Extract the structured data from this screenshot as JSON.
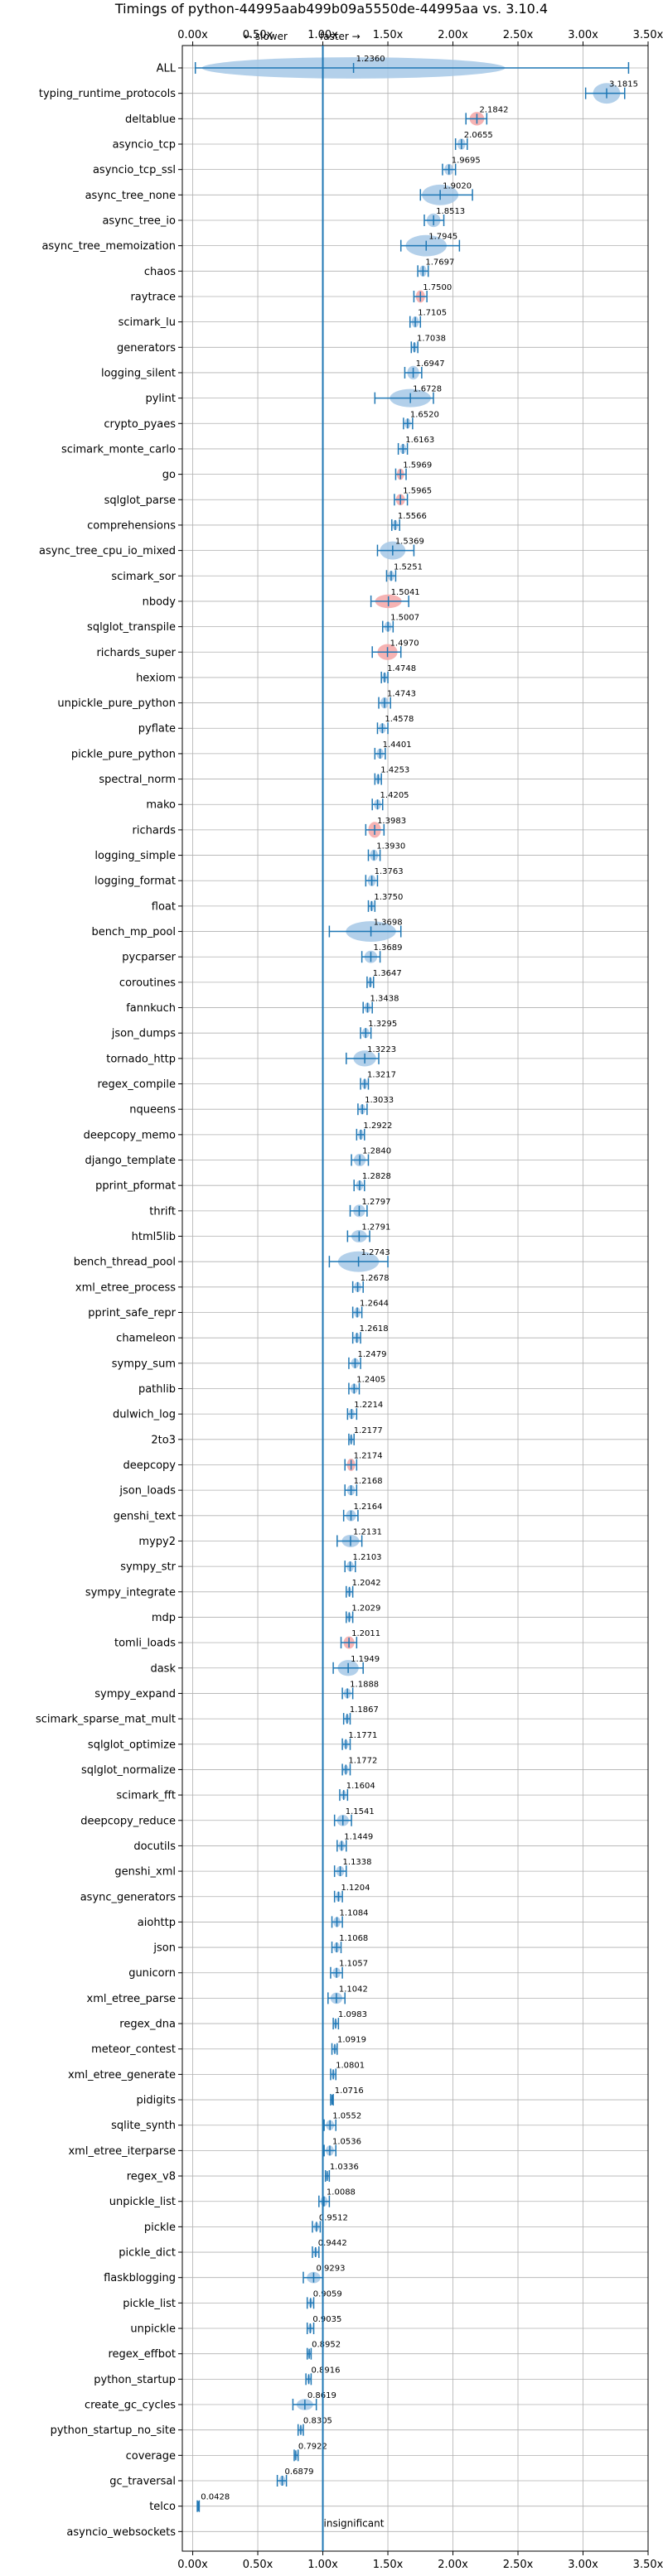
{
  "chart_data": {
    "type": "violin",
    "title": "Timings of python-44995aab499b09a5550de-44995aa vs. 3.10.4",
    "x_tick_labels": [
      "0.00x",
      "0.50x",
      "1.00x",
      "1.50x",
      "2.00x",
      "2.50x",
      "3.00x",
      "3.50x"
    ],
    "x_ticks": [
      0,
      0.5,
      1.0,
      1.5,
      2.0,
      2.5,
      3.0,
      3.5
    ],
    "xlim": [
      -0.08,
      3.5
    ],
    "reference_line": 1.0,
    "slower_label": "← slower",
    "faster_label": "faster →",
    "insignificant_label": "insignificant",
    "insignificant_category": "asyncio_websockets",
    "grid": true,
    "colors": {
      "blue": "#1f77b4",
      "violin": "#a6c8e6",
      "red": "#f4a6a6",
      "grid": "#b0b0b0"
    },
    "benchmarks": [
      {
        "name": "ALL",
        "value": 1.236,
        "lo": 0.02,
        "hi": 3.35,
        "spread": 0.45,
        "color": "blue"
      },
      {
        "name": "typing_runtime_protocols",
        "value": 3.1815,
        "lo": 3.02,
        "hi": 3.32,
        "spread": 0.12,
        "color": "blue"
      },
      {
        "name": "deltablue",
        "value": 2.1842,
        "lo": 2.1,
        "hi": 2.26,
        "spread": 0.06,
        "color": "red"
      },
      {
        "name": "asyncio_tcp",
        "value": 2.0655,
        "lo": 2.02,
        "hi": 2.11,
        "spread": 0.04,
        "color": "blue"
      },
      {
        "name": "asyncio_tcp_ssl",
        "value": 1.9695,
        "lo": 1.92,
        "hi": 2.02,
        "spread": 0.04,
        "color": "blue"
      },
      {
        "name": "async_tree_none",
        "value": 1.902,
        "lo": 1.75,
        "hi": 2.15,
        "spread": 0.12,
        "color": "blue"
      },
      {
        "name": "async_tree_io",
        "value": 1.8513,
        "lo": 1.78,
        "hi": 1.93,
        "spread": 0.06,
        "color": "blue"
      },
      {
        "name": "async_tree_memoization",
        "value": 1.7945,
        "lo": 1.6,
        "hi": 2.05,
        "spread": 0.14,
        "color": "blue"
      },
      {
        "name": "chaos",
        "value": 1.7697,
        "lo": 1.73,
        "hi": 1.81,
        "spread": 0.04,
        "color": "blue"
      },
      {
        "name": "raytrace",
        "value": 1.75,
        "lo": 1.7,
        "hi": 1.8,
        "spread": 0.05,
        "color": "red"
      },
      {
        "name": "scimark_lu",
        "value": 1.7105,
        "lo": 1.67,
        "hi": 1.75,
        "spread": 0.04,
        "color": "blue"
      },
      {
        "name": "generators",
        "value": 1.7038,
        "lo": 1.68,
        "hi": 1.73,
        "spread": 0.03,
        "color": "blue"
      },
      {
        "name": "logging_silent",
        "value": 1.6947,
        "lo": 1.63,
        "hi": 1.76,
        "spread": 0.06,
        "color": "blue"
      },
      {
        "name": "pylint",
        "value": 1.6728,
        "lo": 1.4,
        "hi": 1.85,
        "spread": 0.1,
        "color": "blue"
      },
      {
        "name": "crypto_pyaes",
        "value": 1.652,
        "lo": 1.62,
        "hi": 1.69,
        "spread": 0.03,
        "color": "blue"
      },
      {
        "name": "scimark_monte_carlo",
        "value": 1.6163,
        "lo": 1.58,
        "hi": 1.65,
        "spread": 0.03,
        "color": "blue"
      },
      {
        "name": "go",
        "value": 1.5969,
        "lo": 1.56,
        "hi": 1.64,
        "spread": 0.04,
        "color": "red"
      },
      {
        "name": "sqlglot_parse",
        "value": 1.5965,
        "lo": 1.55,
        "hi": 1.65,
        "spread": 0.04,
        "color": "red"
      },
      {
        "name": "comprehensions",
        "value": 1.5566,
        "lo": 1.53,
        "hi": 1.59,
        "spread": 0.03,
        "color": "blue"
      },
      {
        "name": "async_tree_cpu_io_mixed",
        "value": 1.5369,
        "lo": 1.42,
        "hi": 1.7,
        "spread": 0.1,
        "color": "blue"
      },
      {
        "name": "scimark_sor",
        "value": 1.5251,
        "lo": 1.49,
        "hi": 1.56,
        "spread": 0.03,
        "color": "blue"
      },
      {
        "name": "nbody",
        "value": 1.5041,
        "lo": 1.37,
        "hi": 1.66,
        "spread": 0.06,
        "color": "red"
      },
      {
        "name": "sqlglot_transpile",
        "value": 1.5007,
        "lo": 1.46,
        "hi": 1.54,
        "spread": 0.03,
        "color": "blue"
      },
      {
        "name": "richards_super",
        "value": 1.497,
        "lo": 1.38,
        "hi": 1.6,
        "spread": 0.08,
        "color": "red"
      },
      {
        "name": "hexiom",
        "value": 1.4748,
        "lo": 1.45,
        "hi": 1.5,
        "spread": 0.03,
        "color": "blue"
      },
      {
        "name": "unpickle_pure_python",
        "value": 1.4743,
        "lo": 1.43,
        "hi": 1.52,
        "spread": 0.04,
        "color": "blue"
      },
      {
        "name": "pyflate",
        "value": 1.4578,
        "lo": 1.42,
        "hi": 1.5,
        "spread": 0.03,
        "color": "blue"
      },
      {
        "name": "pickle_pure_python",
        "value": 1.4401,
        "lo": 1.4,
        "hi": 1.48,
        "spread": 0.03,
        "color": "blue"
      },
      {
        "name": "spectral_norm",
        "value": 1.4253,
        "lo": 1.4,
        "hi": 1.45,
        "spread": 0.03,
        "color": "blue"
      },
      {
        "name": "mako",
        "value": 1.4205,
        "lo": 1.38,
        "hi": 1.46,
        "spread": 0.03,
        "color": "blue"
      },
      {
        "name": "richards",
        "value": 1.3983,
        "lo": 1.33,
        "hi": 1.47,
        "spread": 0.08,
        "color": "red"
      },
      {
        "name": "logging_simple",
        "value": 1.393,
        "lo": 1.35,
        "hi": 1.44,
        "spread": 0.04,
        "color": "blue"
      },
      {
        "name": "logging_format",
        "value": 1.3763,
        "lo": 1.33,
        "hi": 1.42,
        "spread": 0.04,
        "color": "blue"
      },
      {
        "name": "float",
        "value": 1.375,
        "lo": 1.35,
        "hi": 1.4,
        "spread": 0.03,
        "color": "blue"
      },
      {
        "name": "bench_mp_pool",
        "value": 1.3698,
        "lo": 1.05,
        "hi": 1.6,
        "spread": 0.12,
        "color": "blue"
      },
      {
        "name": "pycparser",
        "value": 1.3689,
        "lo": 1.3,
        "hi": 1.44,
        "spread": 0.05,
        "color": "blue"
      },
      {
        "name": "coroutines",
        "value": 1.3647,
        "lo": 1.34,
        "hi": 1.39,
        "spread": 0.03,
        "color": "blue"
      },
      {
        "name": "fannkuch",
        "value": 1.3438,
        "lo": 1.31,
        "hi": 1.38,
        "spread": 0.03,
        "color": "blue"
      },
      {
        "name": "json_dumps",
        "value": 1.3295,
        "lo": 1.29,
        "hi": 1.37,
        "spread": 0.03,
        "color": "blue"
      },
      {
        "name": "tornado_http",
        "value": 1.3223,
        "lo": 1.18,
        "hi": 1.43,
        "spread": 0.08,
        "color": "blue"
      },
      {
        "name": "regex_compile",
        "value": 1.3217,
        "lo": 1.29,
        "hi": 1.35,
        "spread": 0.03,
        "color": "blue"
      },
      {
        "name": "nqueens",
        "value": 1.3033,
        "lo": 1.27,
        "hi": 1.34,
        "spread": 0.03,
        "color": "blue"
      },
      {
        "name": "deepcopy_memo",
        "value": 1.2922,
        "lo": 1.26,
        "hi": 1.32,
        "spread": 0.03,
        "color": "blue"
      },
      {
        "name": "django_template",
        "value": 1.284,
        "lo": 1.22,
        "hi": 1.35,
        "spread": 0.05,
        "color": "blue"
      },
      {
        "name": "pprint_pformat",
        "value": 1.2828,
        "lo": 1.24,
        "hi": 1.32,
        "spread": 0.03,
        "color": "blue"
      },
      {
        "name": "thrift",
        "value": 1.2797,
        "lo": 1.21,
        "hi": 1.34,
        "spread": 0.05,
        "color": "blue"
      },
      {
        "name": "html5lib",
        "value": 1.2791,
        "lo": 1.19,
        "hi": 1.36,
        "spread": 0.05,
        "color": "blue"
      },
      {
        "name": "bench_thread_pool",
        "value": 1.2743,
        "lo": 1.05,
        "hi": 1.5,
        "spread": 0.12,
        "color": "blue"
      },
      {
        "name": "xml_etree_process",
        "value": 1.2678,
        "lo": 1.23,
        "hi": 1.31,
        "spread": 0.03,
        "color": "blue"
      },
      {
        "name": "pprint_safe_repr",
        "value": 1.2644,
        "lo": 1.23,
        "hi": 1.3,
        "spread": 0.03,
        "color": "blue"
      },
      {
        "name": "chameleon",
        "value": 1.2618,
        "lo": 1.23,
        "hi": 1.29,
        "spread": 0.03,
        "color": "blue"
      },
      {
        "name": "sympy_sum",
        "value": 1.2479,
        "lo": 1.2,
        "hi": 1.29,
        "spread": 0.03,
        "color": "blue"
      },
      {
        "name": "pathlib",
        "value": 1.2405,
        "lo": 1.2,
        "hi": 1.28,
        "spread": 0.03,
        "color": "blue"
      },
      {
        "name": "dulwich_log",
        "value": 1.2214,
        "lo": 1.19,
        "hi": 1.26,
        "spread": 0.03,
        "color": "blue"
      },
      {
        "name": "2to3",
        "value": 1.2177,
        "lo": 1.2,
        "hi": 1.24,
        "spread": 0.02,
        "color": "blue"
      },
      {
        "name": "deepcopy",
        "value": 1.2174,
        "lo": 1.17,
        "hi": 1.26,
        "spread": 0.05,
        "color": "red"
      },
      {
        "name": "json_loads",
        "value": 1.2168,
        "lo": 1.17,
        "hi": 1.26,
        "spread": 0.03,
        "color": "blue"
      },
      {
        "name": "genshi_text",
        "value": 1.2164,
        "lo": 1.16,
        "hi": 1.27,
        "spread": 0.04,
        "color": "blue"
      },
      {
        "name": "mypy2",
        "value": 1.2131,
        "lo": 1.11,
        "hi": 1.3,
        "spread": 0.05,
        "color": "blue"
      },
      {
        "name": "sympy_str",
        "value": 1.2103,
        "lo": 1.17,
        "hi": 1.25,
        "spread": 0.03,
        "color": "blue"
      },
      {
        "name": "sympy_integrate",
        "value": 1.2042,
        "lo": 1.18,
        "hi": 1.23,
        "spread": 0.02,
        "color": "blue"
      },
      {
        "name": "mdp",
        "value": 1.2029,
        "lo": 1.18,
        "hi": 1.23,
        "spread": 0.02,
        "color": "blue"
      },
      {
        "name": "tomli_loads",
        "value": 1.2011,
        "lo": 1.14,
        "hi": 1.26,
        "spread": 0.05,
        "color": "red"
      },
      {
        "name": "dask",
        "value": 1.1949,
        "lo": 1.08,
        "hi": 1.31,
        "spread": 0.08,
        "color": "blue"
      },
      {
        "name": "sympy_expand",
        "value": 1.1888,
        "lo": 1.15,
        "hi": 1.23,
        "spread": 0.03,
        "color": "blue"
      },
      {
        "name": "scimark_sparse_mat_mult",
        "value": 1.1867,
        "lo": 1.16,
        "hi": 1.21,
        "spread": 0.02,
        "color": "blue"
      },
      {
        "name": "sqlglot_optimize",
        "value": 1.1771,
        "lo": 1.15,
        "hi": 1.21,
        "spread": 0.02,
        "color": "blue"
      },
      {
        "name": "sqlglot_normalize",
        "value": 1.1772,
        "lo": 1.15,
        "hi": 1.21,
        "spread": 0.02,
        "color": "blue"
      },
      {
        "name": "scimark_fft",
        "value": 1.1604,
        "lo": 1.13,
        "hi": 1.19,
        "spread": 0.02,
        "color": "blue"
      },
      {
        "name": "deepcopy_reduce",
        "value": 1.1541,
        "lo": 1.09,
        "hi": 1.22,
        "spread": 0.04,
        "color": "blue"
      },
      {
        "name": "docutils",
        "value": 1.1449,
        "lo": 1.11,
        "hi": 1.18,
        "spread": 0.03,
        "color": "blue"
      },
      {
        "name": "genshi_xml",
        "value": 1.1338,
        "lo": 1.09,
        "hi": 1.18,
        "spread": 0.03,
        "color": "blue"
      },
      {
        "name": "async_generators",
        "value": 1.1204,
        "lo": 1.09,
        "hi": 1.15,
        "spread": 0.03,
        "color": "blue"
      },
      {
        "name": "aiohttp",
        "value": 1.1084,
        "lo": 1.07,
        "hi": 1.15,
        "spread": 0.03,
        "color": "blue"
      },
      {
        "name": "json",
        "value": 1.1068,
        "lo": 1.07,
        "hi": 1.14,
        "spread": 0.03,
        "color": "blue"
      },
      {
        "name": "gunicorn",
        "value": 1.1057,
        "lo": 1.06,
        "hi": 1.15,
        "spread": 0.03,
        "color": "blue"
      },
      {
        "name": "xml_etree_parse",
        "value": 1.1042,
        "lo": 1.04,
        "hi": 1.17,
        "spread": 0.04,
        "color": "blue"
      },
      {
        "name": "regex_dna",
        "value": 1.0983,
        "lo": 1.08,
        "hi": 1.12,
        "spread": 0.02,
        "color": "blue"
      },
      {
        "name": "meteor_contest",
        "value": 1.0919,
        "lo": 1.07,
        "hi": 1.11,
        "spread": 0.02,
        "color": "blue"
      },
      {
        "name": "xml_etree_generate",
        "value": 1.0801,
        "lo": 1.06,
        "hi": 1.1,
        "spread": 0.02,
        "color": "blue"
      },
      {
        "name": "pidigits",
        "value": 1.0716,
        "lo": 1.06,
        "hi": 1.08,
        "spread": 0.01,
        "color": "blue"
      },
      {
        "name": "sqlite_synth",
        "value": 1.0552,
        "lo": 1.01,
        "hi": 1.1,
        "spread": 0.03,
        "color": "blue"
      },
      {
        "name": "xml_etree_iterparse",
        "value": 1.0536,
        "lo": 1.01,
        "hi": 1.1,
        "spread": 0.03,
        "color": "blue"
      },
      {
        "name": "regex_v8",
        "value": 1.0336,
        "lo": 1.02,
        "hi": 1.05,
        "spread": 0.01,
        "color": "blue"
      },
      {
        "name": "unpickle_list",
        "value": 1.0088,
        "lo": 0.97,
        "hi": 1.05,
        "spread": 0.03,
        "color": "blue"
      },
      {
        "name": "pickle",
        "value": 0.9512,
        "lo": 0.92,
        "hi": 0.98,
        "spread": 0.02,
        "color": "blue"
      },
      {
        "name": "pickle_dict",
        "value": 0.9442,
        "lo": 0.92,
        "hi": 0.97,
        "spread": 0.02,
        "color": "blue"
      },
      {
        "name": "flaskblogging",
        "value": 0.9293,
        "lo": 0.85,
        "hi": 1.0,
        "spread": 0.04,
        "color": "blue"
      },
      {
        "name": "pickle_list",
        "value": 0.9059,
        "lo": 0.88,
        "hi": 0.93,
        "spread": 0.02,
        "color": "blue"
      },
      {
        "name": "unpickle",
        "value": 0.9035,
        "lo": 0.88,
        "hi": 0.93,
        "spread": 0.02,
        "color": "blue"
      },
      {
        "name": "regex_effbot",
        "value": 0.8952,
        "lo": 0.88,
        "hi": 0.91,
        "spread": 0.01,
        "color": "blue"
      },
      {
        "name": "python_startup",
        "value": 0.8916,
        "lo": 0.87,
        "hi": 0.91,
        "spread": 0.02,
        "color": "blue"
      },
      {
        "name": "create_gc_cycles",
        "value": 0.8619,
        "lo": 0.77,
        "hi": 0.95,
        "spread": 0.04,
        "color": "blue"
      },
      {
        "name": "python_startup_no_site",
        "value": 0.8305,
        "lo": 0.81,
        "hi": 0.85,
        "spread": 0.02,
        "color": "blue"
      },
      {
        "name": "coverage",
        "value": 0.7922,
        "lo": 0.78,
        "hi": 0.81,
        "spread": 0.01,
        "color": "blue"
      },
      {
        "name": "gc_traversal",
        "value": 0.6879,
        "lo": 0.65,
        "hi": 0.72,
        "spread": 0.03,
        "color": "blue"
      },
      {
        "name": "telco",
        "value": 0.0428,
        "lo": 0.035,
        "hi": 0.05,
        "spread": 0.005,
        "color": "blue"
      },
      {
        "name": "asyncio_websockets",
        "value": null,
        "lo": null,
        "hi": null,
        "spread": 0,
        "color": "blue"
      }
    ]
  }
}
